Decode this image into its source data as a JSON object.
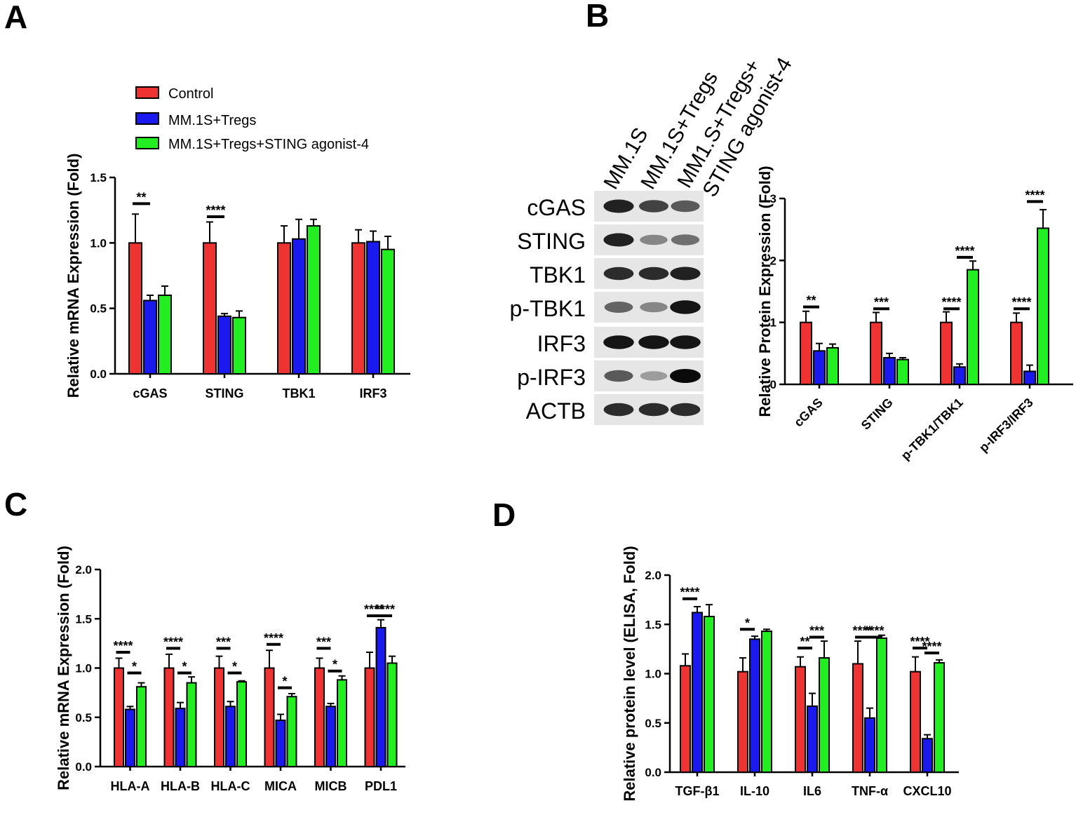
{
  "panels": {
    "A": "A",
    "B": "B",
    "C": "C",
    "D": "D"
  },
  "legend": [
    {
      "label": "Control",
      "color": "#ee3333"
    },
    {
      "label": "MM.1S+Tregs",
      "color": "#1a1aee"
    },
    {
      "label": "MM.1S+Tregs+STING agonist-4",
      "color": "#22ee22"
    }
  ],
  "colors": {
    "control": "#ee3333",
    "tregs": "#1a1aee",
    "agonist": "#22ee22"
  },
  "blot": {
    "lanes": [
      "MM.1S",
      "MM.1S+Tregs",
      "MM1.S+Tregs+",
      "STING agonist-4"
    ],
    "rows": [
      {
        "label": "cGAS",
        "intensity": [
          0.9,
          0.75,
          0.65
        ]
      },
      {
        "label": "STING",
        "intensity": [
          0.9,
          0.45,
          0.55
        ]
      },
      {
        "label": "TBK1",
        "intensity": [
          0.85,
          0.85,
          0.9
        ]
      },
      {
        "label": "p-TBK1",
        "intensity": [
          0.6,
          0.45,
          0.95
        ]
      },
      {
        "label": "IRF3",
        "intensity": [
          0.95,
          0.95,
          0.95
        ]
      },
      {
        "label": "p-IRF3",
        "intensity": [
          0.65,
          0.35,
          1.0
        ]
      },
      {
        "label": "ACTB",
        "intensity": [
          0.85,
          0.85,
          0.85
        ]
      }
    ]
  },
  "chart_data": [
    {
      "id": "A",
      "type": "bar",
      "ylabel": "Relative mRNA Expression (Fold)",
      "ylim": [
        0,
        1.5
      ],
      "yticks": [
        "0.0",
        "0.5",
        "1.0",
        "1.5"
      ],
      "ytick_values": [
        0,
        0.5,
        1.0,
        1.5
      ],
      "categories": [
        "cGAS",
        "STING",
        "TBK1",
        "IRF3"
      ],
      "series": [
        {
          "name": "Control",
          "values": [
            1.0,
            1.0,
            1.0,
            1.0
          ],
          "errors": [
            0.22,
            0.16,
            0.13,
            0.1
          ]
        },
        {
          "name": "MM.1S+Tregs",
          "values": [
            0.56,
            0.44,
            1.03,
            1.01
          ],
          "errors": [
            0.04,
            0.02,
            0.15,
            0.08
          ]
        },
        {
          "name": "MM.1S+Tregs+STING agonist-4",
          "values": [
            0.6,
            0.43,
            1.13,
            0.95
          ],
          "errors": [
            0.07,
            0.05,
            0.05,
            0.1
          ]
        }
      ],
      "significance": [
        {
          "cat": 0,
          "from": 0,
          "to": 1,
          "y": 1.3,
          "text": "**"
        },
        {
          "cat": 1,
          "from": 0,
          "to": 1,
          "y": 1.2,
          "text": "****"
        }
      ]
    },
    {
      "id": "B",
      "type": "bar",
      "ylabel": "Relative Protein Expression (Fold)",
      "ylim": [
        0,
        3
      ],
      "yticks": [
        "0",
        "1",
        "2",
        "3"
      ],
      "ytick_values": [
        0,
        1,
        2,
        3
      ],
      "categories": [
        "cGAS",
        "STING",
        "p-TBK1/TBK1",
        "p-IRF3/IRF3"
      ],
      "series": [
        {
          "name": "Control",
          "values": [
            1.0,
            1.0,
            1.0,
            1.0
          ],
          "errors": [
            0.18,
            0.16,
            0.17,
            0.15
          ]
        },
        {
          "name": "MM.1S+Tregs",
          "values": [
            0.54,
            0.43,
            0.28,
            0.21
          ],
          "errors": [
            0.12,
            0.07,
            0.05,
            0.1
          ]
        },
        {
          "name": "MM.1S+Tregs+STING agonist-4",
          "values": [
            0.59,
            0.4,
            1.85,
            2.52
          ],
          "errors": [
            0.06,
            0.03,
            0.14,
            0.3
          ]
        }
      ],
      "significance": [
        {
          "cat": 0,
          "from": 0,
          "to": 1,
          "y": 1.25,
          "text": "**"
        },
        {
          "cat": 1,
          "from": 0,
          "to": 1,
          "y": 1.22,
          "text": "***"
        },
        {
          "cat": 2,
          "from": 0,
          "to": 1,
          "y": 1.22,
          "text": "****"
        },
        {
          "cat": 2,
          "from": 1,
          "to": 2,
          "y": 2.05,
          "text": "****"
        },
        {
          "cat": 3,
          "from": 0,
          "to": 1,
          "y": 1.22,
          "text": "****"
        },
        {
          "cat": 3,
          "from": 1,
          "to": 2,
          "y": 2.95,
          "text": "****"
        }
      ]
    },
    {
      "id": "C",
      "type": "bar",
      "ylabel": "Relative mRNA Expression (Fold)",
      "ylim": [
        0,
        2.0
      ],
      "yticks": [
        "0.0",
        "0.5",
        "1.0",
        "1.5",
        "2.0"
      ],
      "ytick_values": [
        0,
        0.5,
        1.0,
        1.5,
        2.0
      ],
      "categories": [
        "HLA-A",
        "HLA-B",
        "HLA-C",
        "MICA",
        "MICB",
        "PDL1"
      ],
      "series": [
        {
          "name": "Control",
          "values": [
            1.0,
            1.0,
            1.0,
            1.0,
            1.0,
            1.0
          ],
          "errors": [
            0.1,
            0.14,
            0.12,
            0.18,
            0.1,
            0.16
          ]
        },
        {
          "name": "MM.1S+Tregs",
          "values": [
            0.58,
            0.59,
            0.61,
            0.47,
            0.61,
            1.41
          ],
          "errors": [
            0.03,
            0.06,
            0.05,
            0.06,
            0.03,
            0.08
          ]
        },
        {
          "name": "MM.1S+Tregs+STING agonist-4",
          "values": [
            0.81,
            0.85,
            0.86,
            0.71,
            0.88,
            1.05
          ],
          "errors": [
            0.04,
            0.06,
            0.01,
            0.03,
            0.04,
            0.07
          ]
        }
      ],
      "significance": [
        {
          "cat": 0,
          "from": 0,
          "to": 1,
          "y": 1.16,
          "text": "****"
        },
        {
          "cat": 0,
          "from": 1,
          "to": 2,
          "y": 0.95,
          "text": "*"
        },
        {
          "cat": 1,
          "from": 0,
          "to": 1,
          "y": 1.2,
          "text": "****"
        },
        {
          "cat": 1,
          "from": 1,
          "to": 2,
          "y": 0.95,
          "text": "*"
        },
        {
          "cat": 2,
          "from": 0,
          "to": 1,
          "y": 1.2,
          "text": "***"
        },
        {
          "cat": 2,
          "from": 1,
          "to": 2,
          "y": 0.95,
          "text": "*"
        },
        {
          "cat": 3,
          "from": 0,
          "to": 1,
          "y": 1.24,
          "text": "****"
        },
        {
          "cat": 3,
          "from": 1,
          "to": 2,
          "y": 0.8,
          "text": "*"
        },
        {
          "cat": 4,
          "from": 0,
          "to": 1,
          "y": 1.2,
          "text": "***"
        },
        {
          "cat": 4,
          "from": 1,
          "to": 2,
          "y": 0.97,
          "text": "*"
        },
        {
          "cat": 5,
          "from": 0,
          "to": 1,
          "y": 1.53,
          "text": "****"
        },
        {
          "cat": 5,
          "from": 1,
          "to": 2,
          "y": 1.53,
          "text": "****"
        }
      ]
    },
    {
      "id": "D",
      "type": "bar",
      "ylabel": "Relative protein level (ELISA, Fold)",
      "ylim": [
        0,
        2.0
      ],
      "yticks": [
        "0.0",
        "0.5",
        "1.0",
        "1.5",
        "2.0"
      ],
      "ytick_values": [
        0,
        0.5,
        1.0,
        1.5,
        2.0
      ],
      "categories": [
        "TGF-β1",
        "IL-10",
        "IL6",
        "TNF-α",
        "CXCL10"
      ],
      "series": [
        {
          "name": "Control",
          "values": [
            1.08,
            1.02,
            1.07,
            1.1,
            1.02
          ],
          "errors": [
            0.12,
            0.14,
            0.1,
            0.23,
            0.15
          ]
        },
        {
          "name": "MM.1S+Tregs",
          "values": [
            1.62,
            1.35,
            0.67,
            0.55,
            0.34
          ],
          "errors": [
            0.06,
            0.03,
            0.13,
            0.1,
            0.04
          ]
        },
        {
          "name": "MM.1S+Tregs+STING agonist-4",
          "values": [
            1.58,
            1.43,
            1.16,
            1.36,
            1.11
          ],
          "errors": [
            0.12,
            0.02,
            0.17,
            0.03,
            0.03
          ]
        }
      ],
      "significance": [
        {
          "cat": 0,
          "from": 0,
          "to": 1,
          "y": 1.76,
          "text": "****"
        },
        {
          "cat": 1,
          "from": 0,
          "to": 1,
          "y": 1.45,
          "text": "*"
        },
        {
          "cat": 2,
          "from": 0,
          "to": 1,
          "y": 1.26,
          "text": "**"
        },
        {
          "cat": 2,
          "from": 1,
          "to": 2,
          "y": 1.37,
          "text": "***"
        },
        {
          "cat": 3,
          "from": 0,
          "to": 1,
          "y": 1.37,
          "text": "****"
        },
        {
          "cat": 3,
          "from": 1,
          "to": 2,
          "y": 1.37,
          "text": "****"
        },
        {
          "cat": 4,
          "from": 0,
          "to": 1,
          "y": 1.26,
          "text": "****"
        },
        {
          "cat": 4,
          "from": 1,
          "to": 2,
          "y": 1.21,
          "text": "****"
        }
      ]
    }
  ]
}
